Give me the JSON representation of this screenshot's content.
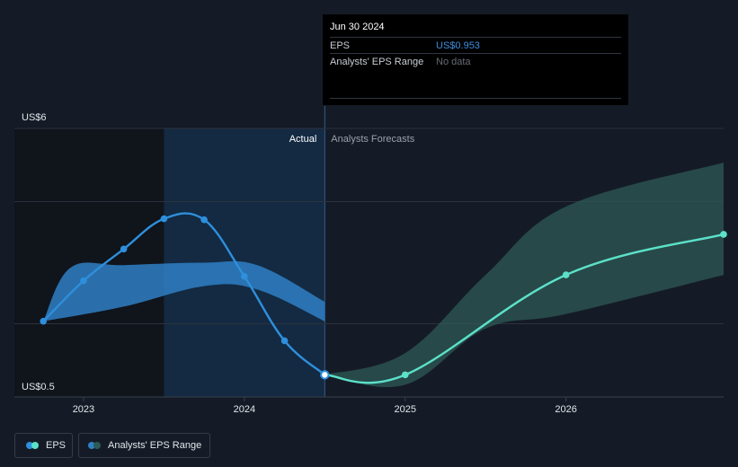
{
  "chart_data": {
    "type": "line",
    "ylim": [
      0.5,
      6
    ],
    "y_labels": {
      "max": "US$6",
      "min": "US$0.5"
    },
    "x_ticks": [
      {
        "x": 2023,
        "label": "2023"
      },
      {
        "x": 2024,
        "label": "2024"
      },
      {
        "x": 2025,
        "label": "2025"
      },
      {
        "x": 2026,
        "label": "2026"
      }
    ],
    "x_range": [
      2022.57,
      2026.98
    ],
    "grid": true,
    "annotations": {
      "actual": "Actual",
      "forecast": "Analysts Forecasts"
    },
    "divider_x": 2024.5,
    "highlight_x": [
      2023.5,
      2024.5
    ],
    "series": [
      {
        "name": "EPS",
        "kind": "actual",
        "color": "#2e8fdc",
        "points": [
          [
            2022.75,
            2.05
          ],
          [
            2023.0,
            2.88
          ],
          [
            2023.25,
            3.53
          ],
          [
            2023.5,
            4.15
          ],
          [
            2023.75,
            4.13
          ],
          [
            2024.0,
            2.97
          ],
          [
            2024.25,
            1.65
          ],
          [
            2024.5,
            0.953
          ]
        ]
      },
      {
        "name": "EPS",
        "kind": "forecast",
        "color": "#5ce1c9",
        "points": [
          [
            2024.5,
            0.953
          ],
          [
            2025.0,
            0.953
          ],
          [
            2026.0,
            3.0
          ],
          [
            2026.98,
            3.83
          ]
        ]
      }
    ],
    "range_bands": [
      {
        "name": "Analysts' EPS Range",
        "kind": "past",
        "color": "#2f7fc4",
        "upper": [
          [
            2022.75,
            2.05
          ],
          [
            2022.92,
            3.15
          ],
          [
            2023.25,
            3.2
          ],
          [
            2023.75,
            3.25
          ],
          [
            2024.08,
            3.2
          ],
          [
            2024.5,
            2.45
          ]
        ],
        "lower": [
          [
            2022.75,
            2.05
          ],
          [
            2023.25,
            2.35
          ],
          [
            2023.75,
            2.77
          ],
          [
            2024.08,
            2.7
          ],
          [
            2024.5,
            2.05
          ]
        ]
      },
      {
        "name": "Analysts' EPS Range",
        "kind": "forecast",
        "color": "#2d5a55",
        "upper": [
          [
            2024.5,
            0.953
          ],
          [
            2025.0,
            1.4
          ],
          [
            2025.5,
            3.0
          ],
          [
            2026.0,
            4.4
          ],
          [
            2026.98,
            5.3
          ]
        ],
        "lower": [
          [
            2024.5,
            0.953
          ],
          [
            2025.0,
            0.75
          ],
          [
            2025.5,
            1.9
          ],
          [
            2026.0,
            2.2
          ],
          [
            2026.98,
            3.0
          ]
        ]
      }
    ]
  },
  "tooltip": {
    "date": "Jun 30 2024",
    "rows": [
      {
        "label": "EPS",
        "value": "US$0.953",
        "value_color": "#3c8fe0"
      },
      {
        "label": "Analysts' EPS Range",
        "value": "No data",
        "value_color": "#666c75"
      }
    ]
  },
  "legend": [
    {
      "label": "EPS",
      "colors": [
        "#2e8fdc",
        "#5ce1c9"
      ]
    },
    {
      "label": "Analysts' EPS Range",
      "colors": [
        "#2f7fc4",
        "#2d5a55"
      ]
    }
  ]
}
